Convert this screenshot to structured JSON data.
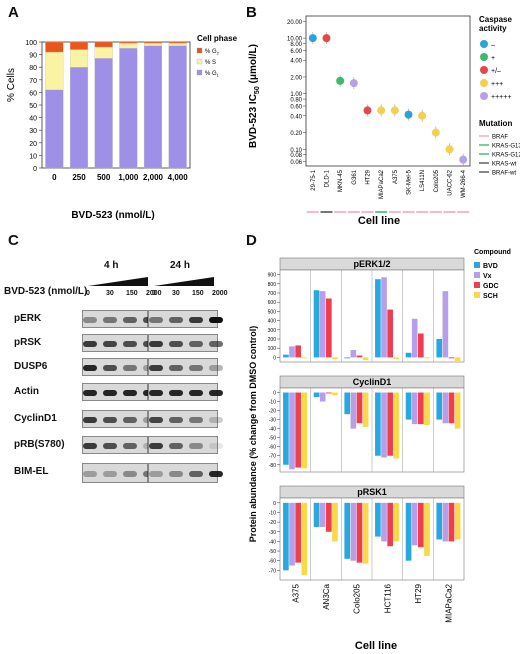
{
  "panels": {
    "a": "A",
    "b": "B",
    "c": "C",
    "d": "D"
  },
  "chart_a": {
    "type": "bar",
    "ylabel": "% Cells",
    "xlabel": "BVD-523 (nmol/L)",
    "categories": [
      "0",
      "250",
      "500",
      "1,000",
      "2,000",
      "4,000"
    ],
    "yticks": [
      "0",
      "10",
      "20",
      "30",
      "40",
      "50",
      "60",
      "70",
      "80",
      "90",
      "100"
    ],
    "legend_title": "Cell phase",
    "series": [
      {
        "name": "% G",
        "sub": "1",
        "color": "#9e90e6",
        "values": [
          62,
          80,
          87,
          95,
          97,
          97
        ]
      },
      {
        "name": "% S",
        "sub": "",
        "color": "#fbf3a4",
        "values": [
          30,
          14,
          9,
          4,
          2,
          2
        ]
      },
      {
        "name": "% G",
        "sub": "2",
        "color": "#e8561c",
        "values": [
          8,
          6,
          4,
          1,
          1,
          1
        ]
      }
    ]
  },
  "chart_b": {
    "type": "scatter",
    "ylabel": "BVD-523 IC",
    "ylabel_sub": "50",
    "ylabel_unit": " (μmol/L)",
    "xlabel": "Cell line",
    "yticks": [
      "0.06",
      "0.08",
      "0.10",
      "0.20",
      "0.40",
      "0.60",
      "0.80",
      "1.00",
      "2.00",
      "4.00",
      "6.00",
      "8.00",
      "10.00",
      "20.00"
    ],
    "ytick_values": [
      0.06,
      0.08,
      0.1,
      0.2,
      0.4,
      0.6,
      0.8,
      1,
      2,
      4,
      6,
      8,
      10,
      20
    ],
    "categories": [
      "29-75-1",
      "DLD-1",
      "MKN-45",
      "G361",
      "HT29",
      "MIAPaCa2",
      "A375",
      "SK-Mel-5",
      "LS411N",
      "Colo205",
      "UACC-62",
      "WM-266-4"
    ],
    "values": [
      10,
      10,
      1.7,
      1.55,
      0.5,
      0.5,
      0.5,
      0.42,
      0.4,
      0.2,
      0.1,
      0.065
    ],
    "colors": [
      "#29a3dc",
      "#e34949",
      "#3dba6b",
      "#b7a0e8",
      "#e34949",
      "#f5d04e",
      "#f5d04e",
      "#29a3dc",
      "#f5d04e",
      "#f5d04e",
      "#f5d04e",
      "#b7a0e8"
    ],
    "underline_colors": [
      "#f0a7c7",
      "#555555",
      "#f0a7c7",
      "#f0a7c7",
      "#f0a7c7",
      "#3dba6b",
      "#f0a7c7",
      "#f0a7c7",
      "#f0a7c7",
      "#f0a7c7",
      "#f0a7c7",
      "#f0a7c7"
    ],
    "caspase_title": "Caspase",
    "caspase_title2": "activity",
    "caspase_items": [
      {
        "label": "–",
        "color": "#29a3dc"
      },
      {
        "label": "+",
        "color": "#3dba6b"
      },
      {
        "label": "+/–",
        "color": "#e34949"
      },
      {
        "label": "+++",
        "color": "#f5d04e"
      },
      {
        "label": "+++++",
        "color": "#b7a0e8"
      }
    ],
    "mutation_title": "Mutation",
    "mutation_items": [
      {
        "label": "BRAF",
        "color": "#f0a7c7"
      },
      {
        "label": "KRAS-G13D",
        "color": "#3dba6b"
      },
      {
        "label": "KRAS-G12C",
        "color": "#3dba6b"
      },
      {
        "label": "KRAS-wt",
        "color": "#555555"
      },
      {
        "label": "BRAF-wt",
        "color": "#555555"
      }
    ]
  },
  "blot_c": {
    "time_4": "4 h",
    "time_24": "24 h",
    "dose_label": "BVD-523 (nmol/L)",
    "doses": [
      "0",
      "30",
      "150",
      "2000"
    ],
    "rows": [
      "pERK",
      "pRSK",
      "DUSP6",
      "Actin",
      "CyclinD1",
      "pRB(S780)",
      "BIM-EL"
    ]
  },
  "chart_d": {
    "type": "bar",
    "ylabel": "Protein abundance (% change from DMSO control)",
    "xlabel": "Cell line",
    "legend_title": "Compound",
    "compounds": [
      {
        "name": "BVD",
        "color": "#29a8e0"
      },
      {
        "name": "Vx",
        "color": "#b79ee8"
      },
      {
        "name": "GDC",
        "color": "#ee3e4f"
      },
      {
        "name": "SCH",
        "color": "#f9d84a"
      }
    ],
    "categories": [
      "A375",
      "AN3Ca",
      "Colo205",
      "HCT116",
      "HT29",
      "MIAPaCa2"
    ],
    "facets": [
      {
        "title": "pERK1/2",
        "yticks": [
          "0",
          "100",
          "200",
          "300",
          "400",
          "500",
          "600",
          "700",
          "800",
          "900"
        ],
        "ymin": -50,
        "ymax": 950,
        "values": [
          [
            30,
            120,
            130,
            -10
          ],
          [
            730,
            720,
            640,
            -20
          ],
          [
            -10,
            80,
            20,
            -30
          ],
          [
            850,
            870,
            520,
            -20
          ],
          [
            50,
            420,
            260,
            -10
          ],
          [
            200,
            720,
            -10,
            -40
          ]
        ]
      },
      {
        "title": "CyclinD1",
        "yticks": [
          "0",
          "-10",
          "-20",
          "-30",
          "-40",
          "-50",
          "-60",
          "-70",
          "-80"
        ],
        "ymin": -88,
        "ymax": 5,
        "values": [
          [
            -80,
            -85,
            -83,
            -84
          ],
          [
            -5,
            -10,
            -1,
            -3
          ],
          [
            -24,
            -40,
            -34,
            -38
          ],
          [
            -70,
            -72,
            -70,
            -73
          ],
          [
            -30,
            -35,
            -35,
            -36
          ],
          [
            -30,
            -34,
            -34,
            -40
          ]
        ]
      },
      {
        "title": "pRSK1",
        "yticks": [
          "0",
          "-10",
          "-20",
          "-30",
          "-40",
          "-50",
          "-60",
          "-70"
        ],
        "ymin": -80,
        "ymax": 5,
        "values": [
          [
            -70,
            -65,
            -62,
            -75
          ],
          [
            -25,
            -25,
            -30,
            -40
          ],
          [
            -58,
            -60,
            -62,
            -63
          ],
          [
            -35,
            -40,
            -45,
            -40
          ],
          [
            -60,
            -44,
            -46,
            -55
          ],
          [
            -38,
            -40,
            -40,
            -38
          ]
        ]
      }
    ]
  }
}
